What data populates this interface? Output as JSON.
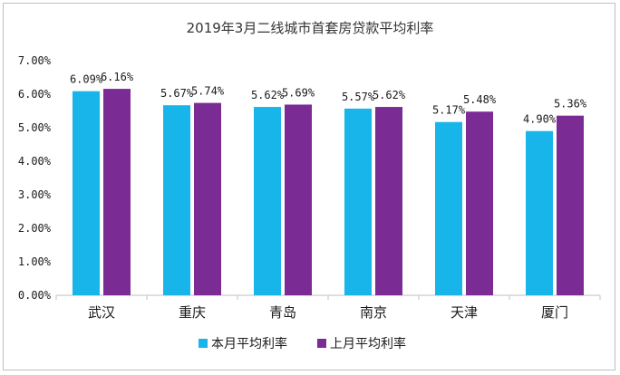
{
  "chart_data": {
    "type": "bar",
    "title": "2019年3月二线城市首套房贷款平均利率",
    "categories": [
      "武汉",
      "重庆",
      "青岛",
      "南京",
      "天津",
      "厦门"
    ],
    "series": [
      {
        "name": "本月平均利率",
        "color": "#17b5ea",
        "values": [
          6.09,
          5.67,
          5.62,
          5.57,
          5.17,
          4.9
        ],
        "labels": [
          "6.09%",
          "5.67%",
          "5.62%",
          "5.57%",
          "5.17%",
          "4.90%"
        ]
      },
      {
        "name": "上月平均利率",
        "color": "#7b2b94",
        "values": [
          6.16,
          5.74,
          5.69,
          5.62,
          5.48,
          5.36
        ],
        "labels": [
          "6.16%",
          "5.74%",
          "5.69%",
          "5.62%",
          "5.48%",
          "5.36%"
        ]
      }
    ],
    "ylim": [
      0,
      7
    ],
    "yticks": [
      {
        "value": 0,
        "label": "0.00%"
      },
      {
        "value": 1,
        "label": "1.00%"
      },
      {
        "value": 2,
        "label": "2.00%"
      },
      {
        "value": 3,
        "label": "3.00%"
      },
      {
        "value": 4,
        "label": "4.00%"
      },
      {
        "value": 5,
        "label": "5.00%"
      },
      {
        "value": 6,
        "label": "6.00%"
      },
      {
        "value": 7,
        "label": "7.00%"
      }
    ],
    "grid": false,
    "legend_position": "bottom"
  }
}
